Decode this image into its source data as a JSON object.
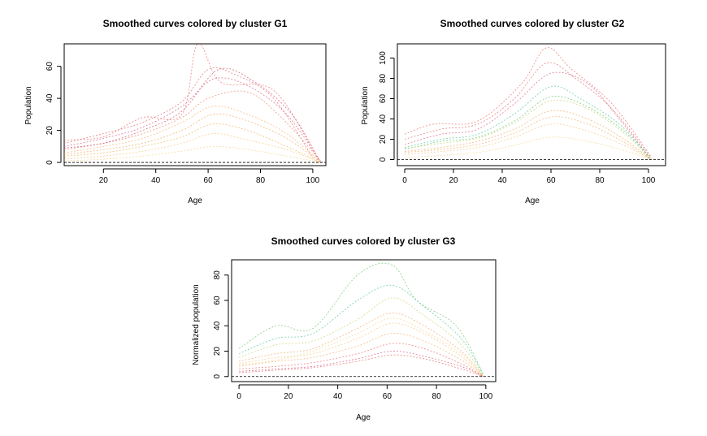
{
  "chart_data": [
    {
      "type": "line",
      "title": "Smoothed curves colored by cluster G1",
      "xlabel": "Age",
      "ylabel": "Population",
      "xlim": [
        5,
        105
      ],
      "ylim": [
        -2,
        74
      ],
      "xticks": [
        20,
        40,
        60,
        80,
        100
      ],
      "yticks": [
        0,
        20,
        40,
        60
      ],
      "reference_line": 0,
      "grid": false,
      "series": [
        {
          "color": "#e35a5a",
          "values": [
            [
              5,
              12
            ],
            [
              20,
              18
            ],
            [
              35,
              25
            ],
            [
              50,
              38
            ],
            [
              60,
              58
            ],
            [
              70,
              55
            ],
            [
              85,
              40
            ],
            [
              100,
              3
            ]
          ]
        },
        {
          "color": "#d4507a",
          "values": [
            [
              5,
              10
            ],
            [
              20,
              15
            ],
            [
              35,
              22
            ],
            [
              50,
              35
            ],
            [
              62,
              52
            ],
            [
              75,
              48
            ],
            [
              90,
              30
            ],
            [
              103,
              0
            ]
          ]
        },
        {
          "color": "#ee7a5a",
          "values": [
            [
              5,
              8
            ],
            [
              20,
              12
            ],
            [
              35,
              18
            ],
            [
              50,
              28
            ],
            [
              60,
              40
            ],
            [
              75,
              44
            ],
            [
              88,
              28
            ],
            [
              103,
              1
            ]
          ]
        },
        {
          "color": "#f0a050",
          "values": [
            [
              5,
              5
            ],
            [
              20,
              8
            ],
            [
              35,
              12
            ],
            [
              50,
              20
            ],
            [
              62,
              30
            ],
            [
              75,
              26
            ],
            [
              90,
              15
            ],
            [
              103,
              0
            ]
          ]
        },
        {
          "color": "#f7c070",
          "values": [
            [
              5,
              2
            ],
            [
              20,
              4
            ],
            [
              35,
              7
            ],
            [
              50,
              12
            ],
            [
              62,
              18
            ],
            [
              75,
              14
            ],
            [
              90,
              8
            ],
            [
              103,
              0
            ]
          ]
        },
        {
          "color": "#e86060",
          "values": [
            [
              5,
              14
            ],
            [
              20,
              16
            ],
            [
              35,
              28
            ],
            [
              50,
              30
            ],
            [
              56,
              74
            ],
            [
              65,
              50
            ],
            [
              85,
              45
            ],
            [
              102,
              2
            ]
          ]
        },
        {
          "color": "#f4a860",
          "values": [
            [
              5,
              6
            ],
            [
              20,
              10
            ],
            [
              35,
              15
            ],
            [
              50,
              25
            ],
            [
              62,
              35
            ],
            [
              75,
              30
            ],
            [
              90,
              18
            ],
            [
              103,
              0
            ]
          ]
        },
        {
          "color": "#f0b040",
          "values": [
            [
              5,
              4
            ],
            [
              20,
              6
            ],
            [
              35,
              10
            ],
            [
              50,
              16
            ],
            [
              62,
              24
            ],
            [
              75,
              20
            ],
            [
              90,
              10
            ],
            [
              103,
              0
            ]
          ]
        },
        {
          "color": "#c84060",
          "values": [
            [
              5,
              9
            ],
            [
              20,
              12
            ],
            [
              35,
              20
            ],
            [
              50,
              32
            ],
            [
              64,
              58
            ],
            [
              78,
              50
            ],
            [
              92,
              30
            ],
            [
              103,
              0
            ]
          ]
        },
        {
          "color": "#f5d080",
          "values": [
            [
              5,
              1
            ],
            [
              20,
              2
            ],
            [
              35,
              4
            ],
            [
              50,
              7
            ],
            [
              62,
              10
            ],
            [
              75,
              8
            ],
            [
              90,
              4
            ],
            [
              103,
              0
            ]
          ]
        }
      ]
    },
    {
      "type": "line",
      "title": "Smoothed curves colored by cluster G2",
      "xlabel": "Age",
      "ylabel": "Population",
      "xlim": [
        -3,
        107
      ],
      "ylim": [
        -6,
        114
      ],
      "xticks": [
        0,
        20,
        40,
        60,
        80,
        100
      ],
      "yticks": [
        0,
        20,
        40,
        60,
        80,
        100
      ],
      "reference_line": 0,
      "grid": false,
      "series": [
        {
          "color": "#e35a5a",
          "values": [
            [
              0,
              20
            ],
            [
              15,
              30
            ],
            [
              30,
              35
            ],
            [
              45,
              60
            ],
            [
              58,
              95
            ],
            [
              70,
              80
            ],
            [
              85,
              50
            ],
            [
              101,
              2
            ]
          ]
        },
        {
          "color": "#d4507a",
          "values": [
            [
              0,
              15
            ],
            [
              15,
              25
            ],
            [
              30,
              30
            ],
            [
              45,
              55
            ],
            [
              60,
              85
            ],
            [
              75,
              75
            ],
            [
              88,
              40
            ],
            [
              101,
              0
            ]
          ]
        },
        {
          "color": "#40c090",
          "values": [
            [
              0,
              12
            ],
            [
              15,
              20
            ],
            [
              30,
              25
            ],
            [
              45,
              45
            ],
            [
              60,
              72
            ],
            [
              72,
              60
            ],
            [
              88,
              35
            ],
            [
              101,
              1
            ]
          ]
        },
        {
          "color": "#60c060",
          "values": [
            [
              0,
              10
            ],
            [
              15,
              18
            ],
            [
              30,
              22
            ],
            [
              45,
              38
            ],
            [
              60,
              62
            ],
            [
              75,
              52
            ],
            [
              90,
              28
            ],
            [
              101,
              0
            ]
          ]
        },
        {
          "color": "#f0a050",
          "values": [
            [
              0,
              8
            ],
            [
              15,
              12
            ],
            [
              30,
              18
            ],
            [
              45,
              30
            ],
            [
              60,
              48
            ],
            [
              75,
              40
            ],
            [
              90,
              20
            ],
            [
              101,
              0
            ]
          ]
        },
        {
          "color": "#f7c070",
          "values": [
            [
              0,
              5
            ],
            [
              15,
              8
            ],
            [
              30,
              12
            ],
            [
              45,
              22
            ],
            [
              60,
              35
            ],
            [
              75,
              28
            ],
            [
              90,
              14
            ],
            [
              101,
              0
            ]
          ]
        },
        {
          "color": "#f5d080",
          "values": [
            [
              0,
              2
            ],
            [
              15,
              4
            ],
            [
              30,
              7
            ],
            [
              45,
              14
            ],
            [
              60,
              22
            ],
            [
              75,
              18
            ],
            [
              90,
              9
            ],
            [
              101,
              0
            ]
          ]
        },
        {
          "color": "#e86060",
          "values": [
            [
              0,
              25
            ],
            [
              12,
              35
            ],
            [
              30,
              38
            ],
            [
              48,
              75
            ],
            [
              58,
              110
            ],
            [
              68,
              90
            ],
            [
              85,
              55
            ],
            [
              101,
              3
            ]
          ]
        },
        {
          "color": "#c0d060",
          "values": [
            [
              0,
              11
            ],
            [
              15,
              16
            ],
            [
              30,
              21
            ],
            [
              45,
              36
            ],
            [
              60,
              58
            ],
            [
              75,
              50
            ],
            [
              90,
              26
            ],
            [
              101,
              0
            ]
          ]
        },
        {
          "color": "#f4a860",
          "values": [
            [
              0,
              7
            ],
            [
              15,
              10
            ],
            [
              30,
              15
            ],
            [
              45,
              26
            ],
            [
              60,
              42
            ],
            [
              75,
              35
            ],
            [
              90,
              17
            ],
            [
              101,
              0
            ]
          ]
        }
      ]
    },
    {
      "type": "line",
      "title": "Smoothed curves colored by cluster G3",
      "xlabel": "Age",
      "ylabel": "Normalized population",
      "xlim": [
        -3,
        104
      ],
      "ylim": [
        -4,
        92
      ],
      "xticks": [
        0,
        20,
        40,
        60,
        80,
        100
      ],
      "yticks": [
        0,
        20,
        40,
        60,
        80
      ],
      "reference_line": 0,
      "grid": false,
      "series": [
        {
          "color": "#60c060",
          "values": [
            [
              0,
              22
            ],
            [
              15,
              40
            ],
            [
              30,
              38
            ],
            [
              48,
              80
            ],
            [
              62,
              88
            ],
            [
              72,
              60
            ],
            [
              88,
              40
            ],
            [
              99,
              2
            ]
          ]
        },
        {
          "color": "#40c090",
          "values": [
            [
              0,
              18
            ],
            [
              15,
              30
            ],
            [
              30,
              34
            ],
            [
              48,
              60
            ],
            [
              62,
              72
            ],
            [
              75,
              55
            ],
            [
              90,
              30
            ],
            [
              99,
              1
            ]
          ]
        },
        {
          "color": "#c0d060",
          "values": [
            [
              0,
              15
            ],
            [
              15,
              25
            ],
            [
              30,
              28
            ],
            [
              48,
              45
            ],
            [
              62,
              62
            ],
            [
              75,
              48
            ],
            [
              90,
              25
            ],
            [
              99,
              0
            ]
          ]
        },
        {
          "color": "#f0a050",
          "values": [
            [
              0,
              12
            ],
            [
              15,
              18
            ],
            [
              30,
              22
            ],
            [
              48,
              38
            ],
            [
              62,
              50
            ],
            [
              75,
              40
            ],
            [
              90,
              20
            ],
            [
              99,
              0
            ]
          ]
        },
        {
          "color": "#f7c070",
          "values": [
            [
              0,
              10
            ],
            [
              15,
              15
            ],
            [
              30,
              18
            ],
            [
              48,
              30
            ],
            [
              62,
              42
            ],
            [
              75,
              34
            ],
            [
              90,
              16
            ],
            [
              99,
              0
            ]
          ]
        },
        {
          "color": "#f4a860",
          "values": [
            [
              0,
              8
            ],
            [
              15,
              12
            ],
            [
              30,
              15
            ],
            [
              48,
              24
            ],
            [
              62,
              34
            ],
            [
              75,
              28
            ],
            [
              90,
              13
            ],
            [
              99,
              0
            ]
          ]
        },
        {
          "color": "#e86060",
          "values": [
            [
              0,
              6
            ],
            [
              15,
              8
            ],
            [
              30,
              11
            ],
            [
              48,
              18
            ],
            [
              62,
              26
            ],
            [
              75,
              22
            ],
            [
              90,
              10
            ],
            [
              99,
              0
            ]
          ]
        },
        {
          "color": "#d4507a",
          "values": [
            [
              0,
              4
            ],
            [
              15,
              6
            ],
            [
              30,
              8
            ],
            [
              48,
              14
            ],
            [
              62,
              20
            ],
            [
              75,
              16
            ],
            [
              90,
              8
            ],
            [
              99,
              0
            ]
          ]
        },
        {
          "color": "#e35a5a",
          "values": [
            [
              0,
              3
            ],
            [
              15,
              5
            ],
            [
              30,
              7
            ],
            [
              48,
              12
            ],
            [
              62,
              17
            ],
            [
              75,
              14
            ],
            [
              90,
              6
            ],
            [
              99,
              0
            ]
          ]
        },
        {
          "color": "#f5d080",
          "values": [
            [
              0,
              9
            ],
            [
              15,
              13
            ],
            [
              30,
              20
            ],
            [
              48,
              34
            ],
            [
              62,
              46
            ],
            [
              75,
              36
            ],
            [
              90,
              18
            ],
            [
              99,
              0
            ]
          ]
        }
      ]
    }
  ]
}
